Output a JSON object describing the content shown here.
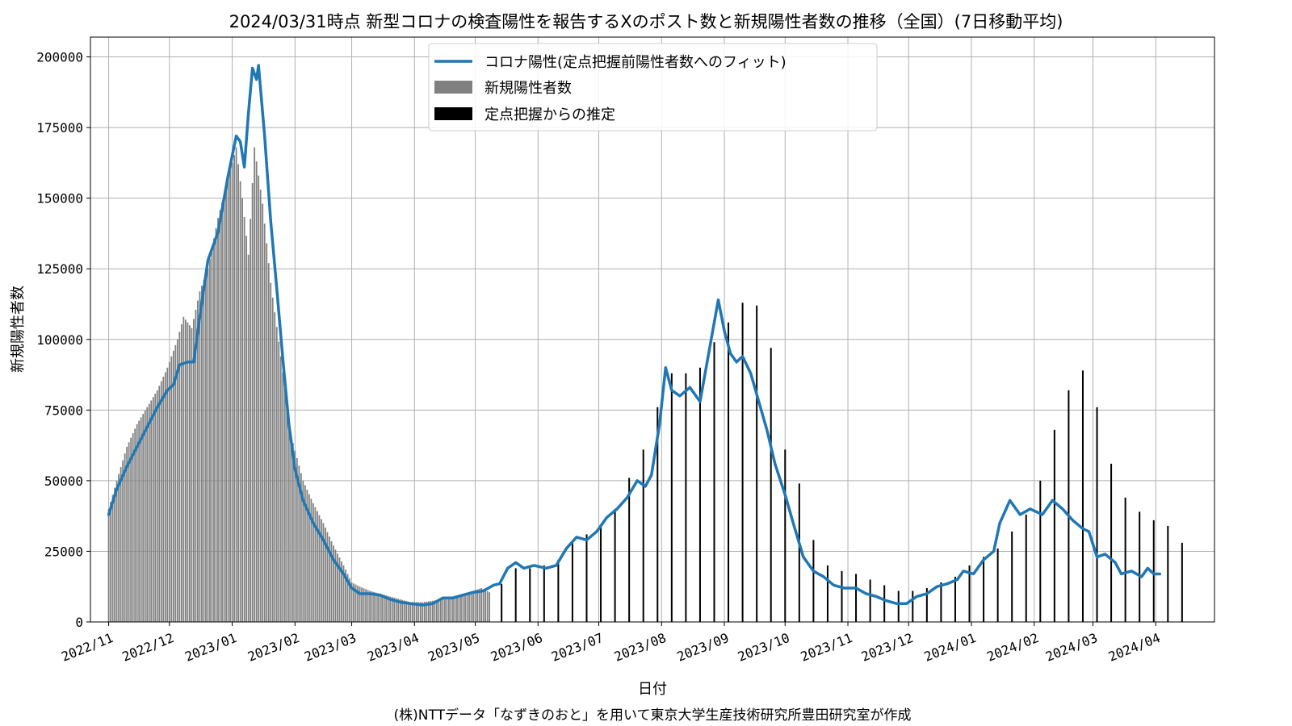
{
  "chart_data": {
    "type": "bar",
    "title": "2024/03/31時点 新型コロナの検査陽性を報告するXのポスト数と新規陽性者数の推移（全国）(7日移動平均)",
    "xlabel": "日付",
    "ylabel": "新規陽性者数",
    "footer": "(株)NTTデータ「なずきのおと」を用いて東京大学生産技術研究所豊田研究室が作成",
    "x_ticks": [
      "2022/11",
      "2022/12",
      "2023/01",
      "2023/02",
      "2023/03",
      "2023/04",
      "2023/05",
      "2023/06",
      "2023/07",
      "2023/08",
      "2023/09",
      "2023/10",
      "2023/11",
      "2023/12",
      "2024/01",
      "2024/02",
      "2024/03",
      "2024/04"
    ],
    "y_ticks": [
      "0",
      "25000",
      "50000",
      "75000",
      "100000",
      "125000",
      "150000",
      "175000",
      "200000"
    ],
    "ylim": [
      0,
      207000
    ],
    "xlim": [
      "2022-10-23",
      "2024-04-30"
    ],
    "grid": true,
    "legend_position": "top-center",
    "colors": {
      "line": "#1f77b4",
      "daily_bars": "#808080",
      "estimate_bars": "#000000",
      "grid": "#b0b0b0"
    },
    "series": [
      {
        "name": "コロナ陽性(定点把握前陽性者数へのフィット)",
        "kind": "line",
        "points": [
          [
            "2022-11-01",
            38000
          ],
          [
            "2022-11-05",
            47000
          ],
          [
            "2022-11-10",
            55000
          ],
          [
            "2022-11-15",
            62000
          ],
          [
            "2022-11-20",
            69000
          ],
          [
            "2022-11-25",
            76000
          ],
          [
            "2022-11-30",
            82000
          ],
          [
            "2022-12-03",
            84000
          ],
          [
            "2022-12-06",
            91000
          ],
          [
            "2022-12-10",
            92000
          ],
          [
            "2022-12-13",
            92000
          ],
          [
            "2022-12-16",
            108000
          ],
          [
            "2022-12-20",
            128000
          ],
          [
            "2022-12-25",
            138000
          ],
          [
            "2022-12-30",
            158000
          ],
          [
            "2023-01-03",
            172000
          ],
          [
            "2023-01-05",
            170000
          ],
          [
            "2023-01-07",
            161000
          ],
          [
            "2023-01-09",
            180000
          ],
          [
            "2023-01-11",
            196000
          ],
          [
            "2023-01-13",
            192000
          ],
          [
            "2023-01-14",
            197000
          ],
          [
            "2023-01-17",
            172000
          ],
          [
            "2023-01-20",
            142000
          ],
          [
            "2023-01-23",
            118000
          ],
          [
            "2023-01-26",
            93000
          ],
          [
            "2023-01-29",
            70000
          ],
          [
            "2023-02-01",
            54000
          ],
          [
            "2023-02-05",
            43000
          ],
          [
            "2023-02-10",
            35000
          ],
          [
            "2023-02-15",
            29000
          ],
          [
            "2023-02-20",
            22000
          ],
          [
            "2023-02-25",
            17000
          ],
          [
            "2023-03-01",
            12000
          ],
          [
            "2023-03-05",
            10000
          ],
          [
            "2023-03-10",
            10000
          ],
          [
            "2023-03-15",
            9500
          ],
          [
            "2023-03-20",
            8000
          ],
          [
            "2023-03-25",
            7000
          ],
          [
            "2023-03-30",
            6500
          ],
          [
            "2023-04-05",
            6000
          ],
          [
            "2023-04-10",
            6500
          ],
          [
            "2023-04-15",
            8500
          ],
          [
            "2023-04-20",
            8500
          ],
          [
            "2023-04-25",
            9500
          ],
          [
            "2023-04-30",
            10500
          ],
          [
            "2023-05-05",
            11000
          ],
          [
            "2023-05-10",
            13000
          ],
          [
            "2023-05-13",
            13500
          ],
          [
            "2023-05-17",
            19000
          ],
          [
            "2023-05-21",
            21000
          ],
          [
            "2023-05-25",
            19000
          ],
          [
            "2023-05-30",
            20000
          ],
          [
            "2023-06-05",
            19000
          ],
          [
            "2023-06-10",
            20000
          ],
          [
            "2023-06-15",
            26000
          ],
          [
            "2023-06-20",
            30000
          ],
          [
            "2023-06-25",
            29000
          ],
          [
            "2023-06-30",
            32000
          ],
          [
            "2023-07-05",
            37000
          ],
          [
            "2023-07-10",
            40000
          ],
          [
            "2023-07-15",
            44000
          ],
          [
            "2023-07-20",
            50000
          ],
          [
            "2023-07-24",
            48000
          ],
          [
            "2023-07-27",
            52000
          ],
          [
            "2023-07-31",
            70000
          ],
          [
            "2023-08-03",
            90000
          ],
          [
            "2023-08-06",
            82000
          ],
          [
            "2023-08-10",
            80000
          ],
          [
            "2023-08-15",
            83000
          ],
          [
            "2023-08-20",
            78000
          ],
          [
            "2023-08-25",
            98000
          ],
          [
            "2023-08-29",
            114000
          ],
          [
            "2023-09-01",
            103000
          ],
          [
            "2023-09-04",
            95000
          ],
          [
            "2023-09-07",
            92000
          ],
          [
            "2023-09-10",
            94000
          ],
          [
            "2023-09-14",
            88000
          ],
          [
            "2023-09-18",
            78000
          ],
          [
            "2023-09-22",
            68000
          ],
          [
            "2023-09-26",
            56000
          ],
          [
            "2023-10-01",
            45000
          ],
          [
            "2023-10-05",
            35000
          ],
          [
            "2023-10-10",
            23000
          ],
          [
            "2023-10-15",
            18000
          ],
          [
            "2023-10-20",
            16000
          ],
          [
            "2023-10-25",
            13000
          ],
          [
            "2023-10-30",
            12000
          ],
          [
            "2023-11-05",
            12000
          ],
          [
            "2023-11-10",
            10000
          ],
          [
            "2023-11-15",
            9000
          ],
          [
            "2023-11-20",
            7500
          ],
          [
            "2023-11-25",
            6500
          ],
          [
            "2023-11-30",
            6500
          ],
          [
            "2023-12-05",
            9000
          ],
          [
            "2023-12-10",
            10000
          ],
          [
            "2023-12-15",
            12500
          ],
          [
            "2023-12-20",
            13500
          ],
          [
            "2023-12-25",
            15000
          ],
          [
            "2023-12-28",
            18000
          ],
          [
            "2024-01-02",
            17000
          ],
          [
            "2024-01-07",
            22000
          ],
          [
            "2024-01-12",
            25000
          ],
          [
            "2024-01-15",
            35000
          ],
          [
            "2024-01-20",
            43000
          ],
          [
            "2024-01-25",
            38000
          ],
          [
            "2024-01-30",
            40000
          ],
          [
            "2024-02-05",
            38000
          ],
          [
            "2024-02-10",
            43000
          ],
          [
            "2024-02-15",
            40000
          ],
          [
            "2024-02-20",
            36000
          ],
          [
            "2024-02-25",
            33000
          ],
          [
            "2024-02-28",
            32000
          ],
          [
            "2024-03-03",
            23000
          ],
          [
            "2024-03-07",
            24000
          ],
          [
            "2024-03-12",
            21000
          ],
          [
            "2024-03-15",
            17000
          ],
          [
            "2024-03-20",
            18000
          ],
          [
            "2024-03-25",
            16000
          ],
          [
            "2024-03-28",
            19000
          ],
          [
            "2024-03-31",
            17000
          ],
          [
            "2024-04-03",
            17000
          ]
        ]
      },
      {
        "name": "新規陽性者数",
        "kind": "daily_bars",
        "points": [
          [
            "2022-11-01",
            40000
          ],
          [
            "2022-11-05",
            50000
          ],
          [
            "2022-11-10",
            62000
          ],
          [
            "2022-11-15",
            70000
          ],
          [
            "2022-11-20",
            76000
          ],
          [
            "2022-11-25",
            82000
          ],
          [
            "2022-11-30",
            90000
          ],
          [
            "2022-12-05",
            100000
          ],
          [
            "2022-12-08",
            108000
          ],
          [
            "2022-12-12",
            104000
          ],
          [
            "2022-12-16",
            117000
          ],
          [
            "2022-12-20",
            125000
          ],
          [
            "2022-12-25",
            143000
          ],
          [
            "2022-12-30",
            157000
          ],
          [
            "2023-01-03",
            168000
          ],
          [
            "2023-01-06",
            150000
          ],
          [
            "2023-01-09",
            130000
          ],
          [
            "2023-01-12",
            168000
          ],
          [
            "2023-01-16",
            148000
          ],
          [
            "2023-01-20",
            120000
          ],
          [
            "2023-01-25",
            94000
          ],
          [
            "2023-01-30",
            66000
          ],
          [
            "2023-02-05",
            50000
          ],
          [
            "2023-02-10",
            42000
          ],
          [
            "2023-02-15",
            35000
          ],
          [
            "2023-02-20",
            27000
          ],
          [
            "2023-02-25",
            20000
          ],
          [
            "2023-03-01",
            14000
          ],
          [
            "2023-03-05",
            12500
          ],
          [
            "2023-03-10",
            11000
          ],
          [
            "2023-03-15",
            10000
          ],
          [
            "2023-03-20",
            9000
          ],
          [
            "2023-03-25",
            8000
          ],
          [
            "2023-03-30",
            7000
          ],
          [
            "2023-04-05",
            7000
          ],
          [
            "2023-04-10",
            7500
          ],
          [
            "2023-04-15",
            8000
          ],
          [
            "2023-04-20",
            8500
          ],
          [
            "2023-04-25",
            9500
          ],
          [
            "2023-04-30",
            11000
          ],
          [
            "2023-05-04",
            12000
          ],
          [
            "2023-05-08",
            10500
          ]
        ]
      },
      {
        "name": "定点把握からの推定",
        "kind": "weekly_bars",
        "points": [
          [
            "2023-05-14",
            13500
          ],
          [
            "2023-05-21",
            19000
          ],
          [
            "2023-05-28",
            19000
          ],
          [
            "2023-06-04",
            20000
          ],
          [
            "2023-06-11",
            22000
          ],
          [
            "2023-06-18",
            28000
          ],
          [
            "2023-06-25",
            31000
          ],
          [
            "2023-07-02",
            34000
          ],
          [
            "2023-07-09",
            40000
          ],
          [
            "2023-07-16",
            51000
          ],
          [
            "2023-07-23",
            61000
          ],
          [
            "2023-07-30",
            76000
          ],
          [
            "2023-08-06",
            88000
          ],
          [
            "2023-08-13",
            88000
          ],
          [
            "2023-08-20",
            90000
          ],
          [
            "2023-08-27",
            99000
          ],
          [
            "2023-09-03",
            106000
          ],
          [
            "2023-09-10",
            113000
          ],
          [
            "2023-09-17",
            112000
          ],
          [
            "2023-09-24",
            97000
          ],
          [
            "2023-10-01",
            61000
          ],
          [
            "2023-10-08",
            49000
          ],
          [
            "2023-10-15",
            29000
          ],
          [
            "2023-10-22",
            20000
          ],
          [
            "2023-10-29",
            18000
          ],
          [
            "2023-11-05",
            17000
          ],
          [
            "2023-11-12",
            15000
          ],
          [
            "2023-11-19",
            13000
          ],
          [
            "2023-11-26",
            11000
          ],
          [
            "2023-12-03",
            11000
          ],
          [
            "2023-12-10",
            12000
          ],
          [
            "2023-12-17",
            14000
          ],
          [
            "2023-12-24",
            16000
          ],
          [
            "2023-12-31",
            20000
          ],
          [
            "2024-01-07",
            23000
          ],
          [
            "2024-01-14",
            26000
          ],
          [
            "2024-01-21",
            32000
          ],
          [
            "2024-01-28",
            38000
          ],
          [
            "2024-02-04",
            50000
          ],
          [
            "2024-02-11",
            68000
          ],
          [
            "2024-02-18",
            82000
          ],
          [
            "2024-02-25",
            89000
          ],
          [
            "2024-03-03",
            76000
          ],
          [
            "2024-03-10",
            56000
          ],
          [
            "2024-03-17",
            44000
          ],
          [
            "2024-03-24",
            39000
          ],
          [
            "2024-03-31",
            36000
          ],
          [
            "2024-04-07",
            34000
          ],
          [
            "2024-04-14",
            28000
          ]
        ]
      }
    ]
  }
}
